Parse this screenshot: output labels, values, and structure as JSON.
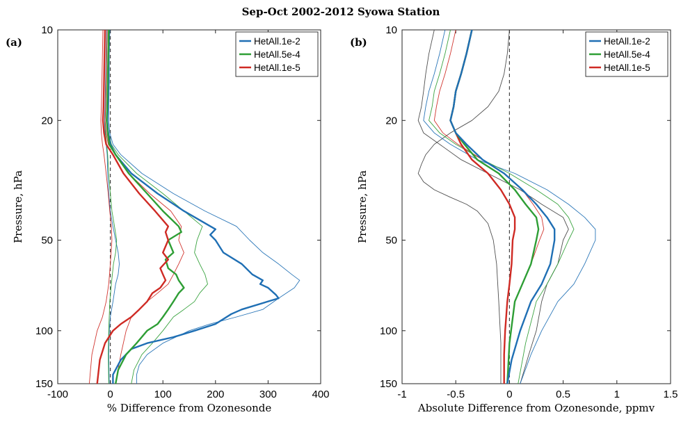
{
  "figure": {
    "title": "Sep-Oct 2002-2012 Syowa Station"
  },
  "colors": {
    "blue": "#1f6fb4",
    "green": "#2e9e35",
    "red": "#cf2a24",
    "zero": "#444444"
  },
  "chart_data": [
    {
      "type": "line",
      "panel_label": "(a)",
      "xlabel": "% Difference from Ozonesonde",
      "ylabel": "Pressure, hPa",
      "xlim": [
        -100,
        400
      ],
      "ylim": [
        10,
        150
      ],
      "y_scale": "log",
      "y_reversed": true,
      "xticks": [
        -100,
        0,
        100,
        200,
        300,
        400
      ],
      "xtick_labels": [
        "-100",
        "0",
        "100",
        "200",
        "300",
        "400"
      ],
      "yticks": [
        10,
        20,
        50,
        100,
        150
      ],
      "ytick_labels": [
        "10",
        "20",
        "50",
        "100",
        "150"
      ],
      "zero_line": 0,
      "legend": {
        "location": "top-right",
        "entries": [
          "HetAll.1e-2",
          "HetAll.5e-4",
          "HetAll.1e-5"
        ]
      },
      "series": [
        {
          "name": "HetAll.1e-2",
          "color": "blue",
          "style": "mean",
          "x": [
            -2,
            -3,
            -4,
            -5,
            -6,
            -4,
            0,
            10,
            40,
            90,
            140,
            200,
            190,
            200,
            215,
            250,
            270,
            290,
            285,
            300,
            315,
            320,
            250,
            230,
            200,
            160,
            120,
            70,
            40,
            20,
            5,
            5
          ],
          "y": [
            10,
            12,
            15,
            18,
            20,
            22,
            24,
            26,
            30,
            35,
            40,
            46,
            48,
            50,
            55,
            60,
            65,
            68,
            70,
            72,
            76,
            78,
            85,
            88,
            95,
            100,
            105,
            110,
            115,
            125,
            140,
            150
          ]
        },
        {
          "name": "HetAll.1e-2",
          "color": "blue",
          "style": "spread",
          "x": [
            -1,
            -2,
            -2,
            -3,
            -3,
            -1,
            5,
            20,
            60,
            120,
            180,
            240,
            265,
            290,
            320,
            345,
            360,
            350,
            320,
            290,
            240,
            190,
            150,
            100,
            70,
            55,
            50,
            50
          ],
          "y": [
            10,
            12,
            15,
            18,
            20,
            22,
            24,
            26,
            30,
            35,
            40,
            45,
            50,
            55,
            60,
            65,
            68,
            72,
            78,
            85,
            90,
            95,
            100,
            110,
            120,
            130,
            140,
            150
          ]
        },
        {
          "name": "HetAll.1e-2",
          "color": "blue",
          "style": "spread",
          "x": [
            -7,
            -8,
            -9,
            -10,
            -11,
            -10,
            -8,
            -6,
            -5,
            -3,
            0,
            5,
            10,
            15,
            17,
            15,
            10,
            5,
            0,
            -2,
            -3,
            -2
          ],
          "y": [
            10,
            12,
            15,
            18,
            20,
            22,
            24,
            26,
            30,
            35,
            40,
            45,
            50,
            55,
            60,
            65,
            70,
            80,
            90,
            100,
            120,
            150
          ]
        },
        {
          "name": "HetAll.5e-4",
          "color": "green",
          "style": "mean",
          "x": [
            -3,
            -4,
            -5,
            -6,
            -7,
            -5,
            -2,
            10,
            35,
            70,
            100,
            130,
            135,
            110,
            120,
            105,
            110,
            125,
            130,
            140,
            130,
            120,
            110,
            100,
            90,
            70,
            50,
            30,
            15,
            10
          ],
          "y": [
            10,
            12,
            15,
            18,
            20,
            22,
            24,
            26,
            30,
            35,
            40,
            45,
            47,
            50,
            55,
            58,
            62,
            65,
            68,
            72,
            75,
            80,
            85,
            90,
            95,
            100,
            110,
            120,
            135,
            150
          ]
        },
        {
          "name": "HetAll.5e-4",
          "color": "green",
          "style": "spread",
          "x": [
            -2,
            -3,
            -3,
            -4,
            -5,
            -3,
            2,
            15,
            50,
            100,
            140,
            175,
            165,
            160,
            170,
            180,
            185,
            170,
            160,
            140,
            120,
            100,
            80,
            60,
            45,
            40
          ],
          "y": [
            10,
            12,
            15,
            18,
            20,
            22,
            24,
            26,
            30,
            35,
            40,
            45,
            50,
            55,
            60,
            65,
            70,
            75,
            80,
            85,
            90,
            100,
            110,
            120,
            135,
            150
          ]
        },
        {
          "name": "HetAll.5e-4",
          "color": "green",
          "style": "spread",
          "x": [
            -6,
            -7,
            -8,
            -9,
            -10,
            -9,
            -7,
            -5,
            -3,
            0,
            3,
            8,
            12,
            10,
            6,
            2,
            -1,
            -3,
            -4,
            -3
          ],
          "y": [
            10,
            12,
            15,
            18,
            20,
            22,
            24,
            26,
            30,
            35,
            40,
            45,
            50,
            55,
            60,
            70,
            80,
            100,
            120,
            150
          ]
        },
        {
          "name": "HetAll.1e-5",
          "color": "red",
          "style": "mean",
          "x": [
            -10,
            -11,
            -12,
            -13,
            -14,
            -12,
            -8,
            5,
            25,
            55,
            85,
            110,
            105,
            110,
            100,
            110,
            95,
            100,
            105,
            95,
            80,
            70,
            55,
            40,
            20,
            5,
            -10,
            -20,
            -25
          ],
          "y": [
            10,
            12,
            15,
            18,
            20,
            22,
            24,
            26,
            30,
            35,
            40,
            45,
            47,
            50,
            55,
            58,
            62,
            65,
            68,
            72,
            75,
            80,
            85,
            90,
            95,
            100,
            110,
            125,
            150
          ]
        },
        {
          "name": "HetAll.1e-5",
          "color": "red",
          "style": "spread",
          "x": [
            -6,
            -7,
            -8,
            -9,
            -10,
            -8,
            -4,
            10,
            35,
            75,
            115,
            135,
            130,
            140,
            130,
            120,
            110,
            90,
            70,
            55,
            40,
            30,
            20,
            10
          ],
          "y": [
            10,
            12,
            15,
            18,
            20,
            22,
            24,
            26,
            30,
            35,
            40,
            45,
            50,
            55,
            60,
            65,
            70,
            75,
            80,
            85,
            90,
            100,
            120,
            150
          ]
        },
        {
          "name": "HetAll.1e-5",
          "color": "red",
          "style": "spread",
          "x": [
            -14,
            -15,
            -16,
            -17,
            -18,
            -17,
            -15,
            -12,
            -8,
            -4,
            -1,
            2,
            3,
            0,
            -3,
            -8,
            -15,
            -25,
            -35,
            -40
          ],
          "y": [
            10,
            12,
            15,
            18,
            20,
            22,
            24,
            26,
            30,
            35,
            40,
            45,
            50,
            60,
            70,
            80,
            90,
            100,
            120,
            150
          ]
        }
      ]
    },
    {
      "type": "line",
      "panel_label": "(b)",
      "xlabel": "Absolute Difference from Ozonesonde, ppmv",
      "ylabel": "Pressure, hPa",
      "xlim": [
        -1,
        1.5
      ],
      "ylim": [
        10,
        150
      ],
      "y_scale": "log",
      "y_reversed": true,
      "xticks": [
        -1,
        -0.5,
        0,
        0.5,
        1,
        1.5
      ],
      "xtick_labels": [
        "-1",
        "-0.5",
        "0",
        "0.5",
        "1",
        "1.5"
      ],
      "yticks": [
        10,
        20,
        50,
        100,
        150
      ],
      "ytick_labels": [
        "10",
        "20",
        "50",
        "100",
        "150"
      ],
      "zero_line": 0,
      "legend": {
        "location": "top-right",
        "entries": [
          "HetAll.1e-2",
          "HetAll.5e-4",
          "HetAll.1e-5"
        ]
      },
      "series": [
        {
          "name": "HetAll.1e-5",
          "color": "red",
          "style": "mean",
          "x": [
            -0.35,
            -0.4,
            -0.45,
            -0.5,
            -0.52,
            -0.55,
            -0.5,
            -0.45,
            -0.35,
            -0.2,
            -0.08,
            0.0,
            0.05,
            0.05,
            0.03,
            0.02,
            0.0,
            -0.02,
            -0.04,
            -0.05,
            -0.05
          ],
          "y": [
            10,
            12,
            14,
            16,
            18,
            20,
            22,
            24,
            27,
            30,
            34,
            38,
            42,
            46,
            50,
            60,
            70,
            80,
            100,
            120,
            150
          ]
        },
        {
          "name": "HetAll.5e-4",
          "color": "green",
          "style": "mean",
          "x": [
            -0.35,
            -0.4,
            -0.45,
            -0.5,
            -0.52,
            -0.55,
            -0.5,
            -0.42,
            -0.3,
            -0.1,
            0.05,
            0.15,
            0.25,
            0.27,
            0.25,
            0.2,
            0.12,
            0.05,
            0.0,
            -0.02
          ],
          "y": [
            10,
            12,
            14,
            16,
            18,
            20,
            22,
            24,
            27,
            30,
            34,
            38,
            42,
            46,
            50,
            60,
            70,
            80,
            110,
            150
          ]
        },
        {
          "name": "HetAll.1e-2",
          "color": "blue",
          "style": "mean",
          "x": [
            -0.35,
            -0.4,
            -0.45,
            -0.5,
            -0.52,
            -0.55,
            -0.5,
            -0.4,
            -0.25,
            -0.05,
            0.12,
            0.25,
            0.35,
            0.42,
            0.42,
            0.38,
            0.3,
            0.2,
            0.1,
            0.02,
            -0.02
          ],
          "y": [
            10,
            12,
            14,
            16,
            18,
            20,
            22,
            24,
            27,
            30,
            34,
            38,
            42,
            46,
            50,
            60,
            70,
            80,
            100,
            125,
            150
          ]
        },
        {
          "name": "",
          "color": "zero",
          "style": "sonde",
          "x": [
            0.0,
            -0.02,
            -0.05,
            -0.1,
            -0.2,
            -0.35,
            -0.55,
            -0.7,
            -0.78,
            -0.82,
            -0.85,
            -0.8,
            -0.7,
            -0.55,
            -0.4,
            -0.3,
            -0.2,
            -0.15,
            -0.12,
            -0.1,
            -0.08,
            -0.08
          ],
          "y": [
            10,
            12,
            14,
            16,
            18,
            20,
            22,
            24,
            26,
            28,
            30,
            32,
            34,
            36,
            38,
            40,
            44,
            50,
            60,
            80,
            110,
            150
          ]
        },
        {
          "name": "",
          "color": "zero",
          "style": "sonde",
          "x": [
            -0.7,
            -0.75,
            -0.78,
            -0.8,
            -0.82,
            -0.85,
            -0.8,
            -0.65,
            -0.45,
            -0.2,
            0.1,
            0.3,
            0.5,
            0.55,
            0.5,
            0.45,
            0.35,
            0.3,
            0.25,
            0.18,
            0.1
          ],
          "y": [
            10,
            12,
            14,
            16,
            18,
            20,
            22,
            24,
            27,
            30,
            34,
            38,
            42,
            46,
            50,
            60,
            70,
            80,
            100,
            120,
            150
          ]
        },
        {
          "name": "HetAll.1e-2",
          "color": "blue",
          "style": "spread",
          "x": [
            -0.6,
            -0.65,
            -0.7,
            -0.75,
            -0.78,
            -0.8,
            -0.7,
            -0.55,
            -0.3,
            0.05,
            0.35,
            0.55,
            0.7,
            0.8,
            0.8,
            0.7,
            0.6,
            0.45,
            0.3,
            0.2,
            0.1
          ],
          "y": [
            10,
            12,
            14,
            16,
            18,
            20,
            22,
            24,
            27,
            30,
            34,
            38,
            42,
            46,
            50,
            60,
            70,
            80,
            100,
            120,
            150
          ]
        },
        {
          "name": "HetAll.5e-4",
          "color": "green",
          "style": "spread",
          "x": [
            -0.55,
            -0.6,
            -0.65,
            -0.7,
            -0.72,
            -0.75,
            -0.65,
            -0.5,
            -0.25,
            0.0,
            0.25,
            0.45,
            0.55,
            0.6,
            0.55,
            0.45,
            0.35,
            0.25,
            0.15,
            0.08
          ],
          "y": [
            10,
            12,
            14,
            16,
            18,
            20,
            22,
            24,
            27,
            30,
            34,
            38,
            42,
            46,
            50,
            60,
            70,
            80,
            110,
            150
          ]
        },
        {
          "name": "HetAll.1e-5",
          "color": "red",
          "style": "spread",
          "x": [
            -0.5,
            -0.55,
            -0.6,
            -0.65,
            -0.68,
            -0.7,
            -0.62,
            -0.48,
            -0.25,
            -0.05,
            0.12,
            0.22,
            0.3,
            0.32,
            0.28,
            0.2,
            0.12,
            0.05,
            0.0,
            -0.02
          ],
          "y": [
            10,
            12,
            14,
            16,
            18,
            20,
            22,
            24,
            27,
            30,
            34,
            38,
            42,
            46,
            50,
            60,
            70,
            80,
            110,
            150
          ]
        }
      ]
    }
  ]
}
